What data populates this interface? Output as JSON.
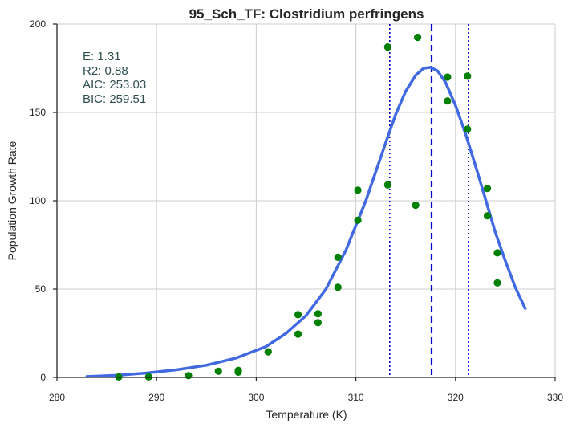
{
  "chart_data": {
    "type": "scatter",
    "title": "95_Sch_TF: Clostridium perfringens",
    "xlabel": "Temperature (K)",
    "ylabel": "Population Growth Rate",
    "xlim": [
      280,
      330
    ],
    "ylim": [
      0,
      200
    ],
    "xticks": [
      280,
      290,
      300,
      310,
      320,
      330
    ],
    "yticks": [
      0,
      50,
      100,
      150,
      200
    ],
    "x_tick_labels": [
      "280",
      "290",
      "300",
      "310",
      "320",
      "330"
    ],
    "y_tick_labels": [
      "0",
      "50",
      "100",
      "150",
      "200"
    ],
    "grid": true,
    "stats": [
      "E:  1.31",
      "R2:  0.88",
      "AIC: 253.03",
      "BIC: 259.51"
    ],
    "colors": {
      "points": "#008000",
      "fit": "#4169e1",
      "vlines": "#0000cd",
      "grid": "#cccccc",
      "axis": "#262626"
    },
    "points": [
      {
        "x": 286.2,
        "y": 0.3
      },
      {
        "x": 289.2,
        "y": 0.3
      },
      {
        "x": 293.2,
        "y": 1.0
      },
      {
        "x": 296.2,
        "y": 3.5
      },
      {
        "x": 298.2,
        "y": 3.0
      },
      {
        "x": 298.2,
        "y": 4.0
      },
      {
        "x": 301.2,
        "y": 14.5
      },
      {
        "x": 304.2,
        "y": 24.5
      },
      {
        "x": 304.2,
        "y": 35.5
      },
      {
        "x": 306.2,
        "y": 31.0
      },
      {
        "x": 306.2,
        "y": 36.0
      },
      {
        "x": 308.2,
        "y": 51.0
      },
      {
        "x": 308.2,
        "y": 68.0
      },
      {
        "x": 310.2,
        "y": 89.0
      },
      {
        "x": 310.2,
        "y": 106.0
      },
      {
        "x": 313.2,
        "y": 109.0
      },
      {
        "x": 313.2,
        "y": 187.0
      },
      {
        "x": 316.0,
        "y": 97.5
      },
      {
        "x": 316.2,
        "y": 192.5
      },
      {
        "x": 319.2,
        "y": 156.5
      },
      {
        "x": 319.2,
        "y": 170.0
      },
      {
        "x": 321.2,
        "y": 140.5
      },
      {
        "x": 321.2,
        "y": 170.5
      },
      {
        "x": 323.2,
        "y": 91.5
      },
      {
        "x": 323.2,
        "y": 107.0
      },
      {
        "x": 324.2,
        "y": 53.5
      },
      {
        "x": 324.2,
        "y": 70.5
      }
    ],
    "fit_curve": {
      "x": [
        283.0,
        286.0,
        289.0,
        292.0,
        295.0,
        298.0,
        301.0,
        303.0,
        305.0,
        307.0,
        309.0,
        311.0,
        313.0,
        314.0,
        315.0,
        316.0,
        316.8,
        317.5,
        318.2,
        319.0,
        320.0,
        321.0,
        322.0,
        323.0,
        324.0,
        325.0,
        326.0,
        327.0
      ],
      "y": [
        0.5,
        1.2,
        2.5,
        4.3,
        6.9,
        11.0,
        17.5,
        25.0,
        35.0,
        50.0,
        72.0,
        100.0,
        133.0,
        149.0,
        162.0,
        171.0,
        175.0,
        175.5,
        173.5,
        167.0,
        154.0,
        138.0,
        120.0,
        101.0,
        82.0,
        66.0,
        51.0,
        39.0
      ]
    },
    "vlines": [
      {
        "x": 313.4,
        "style": "dotted"
      },
      {
        "x": 317.6,
        "style": "dashed"
      },
      {
        "x": 321.3,
        "style": "dotted"
      }
    ]
  }
}
